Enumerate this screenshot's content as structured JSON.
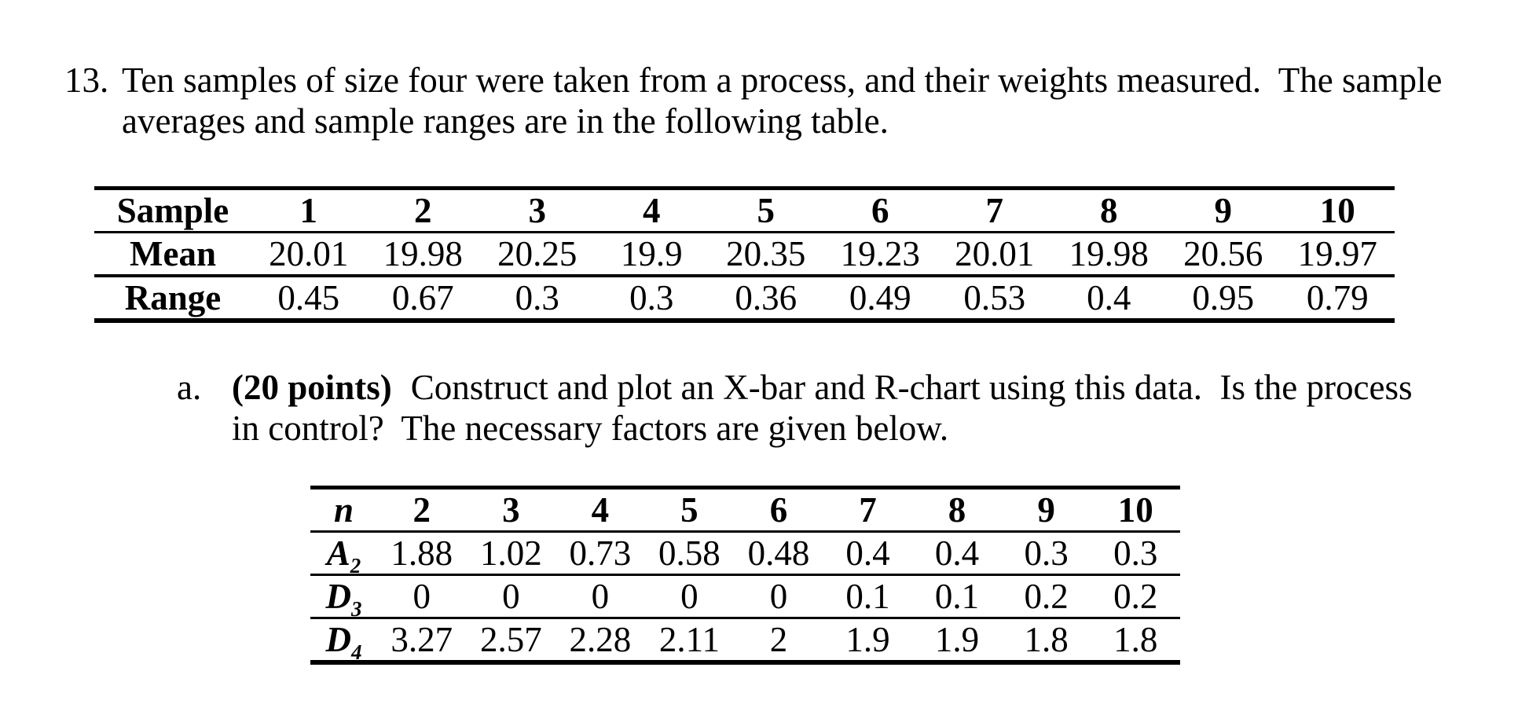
{
  "problem": {
    "number": "13.",
    "line1": "Ten samples of size four were taken from a process, and their weights measured.  The sample",
    "line2": "averages and sample ranges are in the following table."
  },
  "samples_table": {
    "header": [
      "Sample",
      "1",
      "2",
      "3",
      "4",
      "5",
      "6",
      "7",
      "8",
      "9",
      "10"
    ],
    "rows": [
      {
        "label": "Mean",
        "values": [
          "20.01",
          "19.98",
          "20.25",
          "19.9",
          "20.35",
          "19.23",
          "20.01",
          "19.98",
          "20.56",
          "19.97"
        ]
      },
      {
        "label": "Range",
        "values": [
          "0.45",
          "0.67",
          "0.3",
          "0.3",
          "0.36",
          "0.49",
          "0.53",
          "0.4",
          "0.95",
          "0.79"
        ]
      }
    ]
  },
  "part_a": {
    "marker": "a.",
    "points_label": "(20 points)",
    "line1": "Construct and plot an X-bar and R-chart using this data.  Is the process",
    "line2": "in control?  The necessary factors are given below."
  },
  "factors_table": {
    "header": [
      "n",
      "2",
      "3",
      "4",
      "5",
      "6",
      "7",
      "8",
      "9",
      "10"
    ],
    "rows": [
      {
        "label": "A",
        "sub": "2",
        "values": [
          "1.88",
          "1.02",
          "0.73",
          "0.58",
          "0.48",
          "0.4",
          "0.4",
          "0.3",
          "0.3"
        ]
      },
      {
        "label": "D",
        "sub": "3",
        "values": [
          "0",
          "0",
          "0",
          "0",
          "0",
          "0.1",
          "0.1",
          "0.2",
          "0.2"
        ]
      },
      {
        "label": "D",
        "sub": "4",
        "values": [
          "3.27",
          "2.57",
          "2.28",
          "2.11",
          "2",
          "1.9",
          "1.9",
          "1.8",
          "1.8"
        ]
      }
    ]
  }
}
